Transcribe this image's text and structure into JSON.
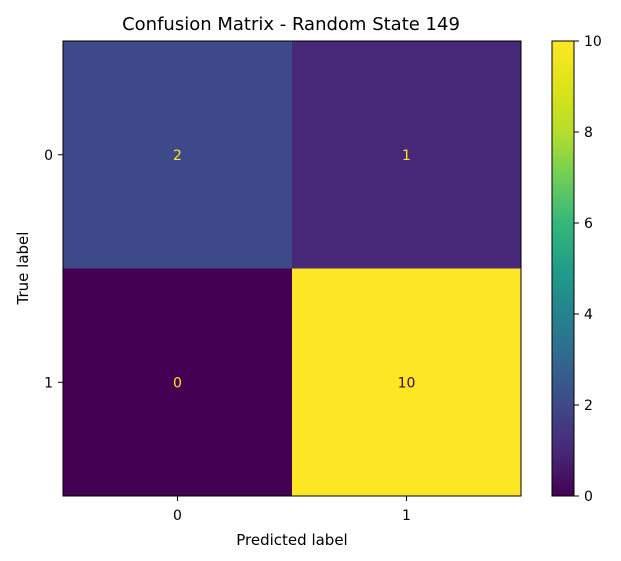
{
  "chart_data": {
    "type": "heatmap",
    "title": "Confusion Matrix - Random State 149",
    "xlabel": "Predicted label",
    "ylabel": "True label",
    "x_categories": [
      "0",
      "1"
    ],
    "y_categories": [
      "0",
      "1"
    ],
    "matrix": [
      [
        2,
        1
      ],
      [
        0,
        10
      ]
    ],
    "colormap": "viridis",
    "color_range": [
      0,
      10
    ],
    "colorbar_ticks": [
      0,
      2,
      4,
      6,
      8,
      10
    ],
    "colors": {
      "low": "#440154",
      "high": "#fde725",
      "text_on_dark": "#fde725",
      "text_on_light": "#440154"
    },
    "grid": false
  }
}
